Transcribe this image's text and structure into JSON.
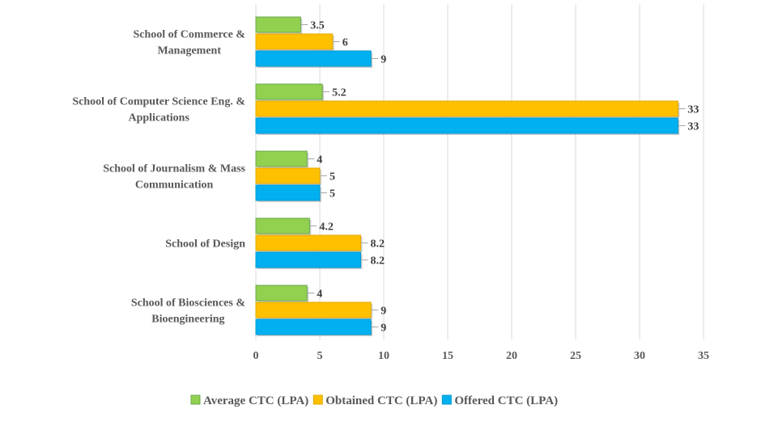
{
  "chart_data": {
    "type": "bar",
    "orientation": "horizontal",
    "title": "",
    "xlabel": "",
    "ylabel": "",
    "categories": [
      [
        "School of Commerce &",
        "Management"
      ],
      [
        "School of Computer Science Eng. &",
        "Applications"
      ],
      [
        "School of Journalism  & Mass",
        "Communication"
      ],
      [
        "School of Design"
      ],
      [
        "School of Biosciences &",
        "Bioengineering"
      ]
    ],
    "series": [
      {
        "name": "Average CTC (LPA)",
        "color": "#92d050",
        "values": [
          3.5,
          5.2,
          4,
          4.2,
          4
        ]
      },
      {
        "name": "Obtained CTC (LPA)",
        "color": "#ffc000",
        "values": [
          6,
          33,
          5,
          8.2,
          9
        ]
      },
      {
        "name": "Offered CTC (LPA)",
        "color": "#00b0f0",
        "values": [
          9,
          33,
          5,
          8.2,
          9
        ]
      }
    ],
    "data_labels": [
      [
        "3.5",
        "5.2",
        "4",
        "4.2",
        "4"
      ],
      [
        "6",
        "33",
        "5",
        "8.2",
        "9"
      ],
      [
        "9",
        "33",
        "5",
        "8.2",
        "9"
      ]
    ],
    "xlim": [
      0,
      35
    ],
    "x_ticks": [
      0,
      5,
      10,
      15,
      20,
      25,
      30,
      35
    ],
    "x_tick_labels": [
      "0",
      "5",
      "10",
      "15",
      "20",
      "25",
      "30",
      "35"
    ],
    "grid": true,
    "legend_position": "bottom"
  }
}
